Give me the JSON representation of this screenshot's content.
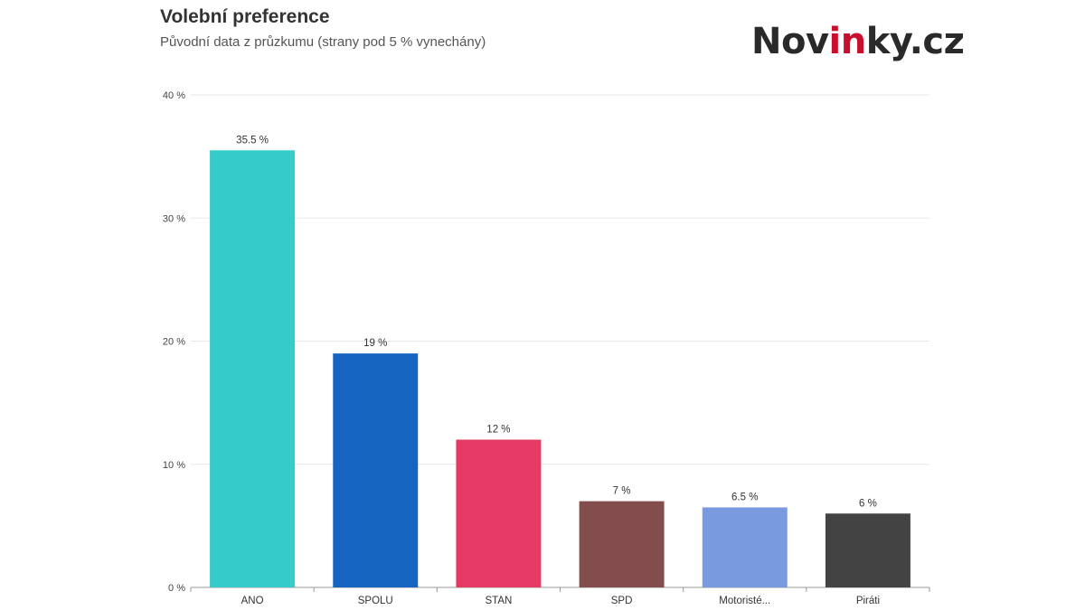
{
  "header": {
    "title": "Volební preference",
    "subtitle": "Původní data z průzkumu (strany pod 5 % vynechány)"
  },
  "logo": {
    "prefix": "Nov",
    "accent": "in",
    "suffix": "ky.cz",
    "accent_color": "#c8102e",
    "text_color": "#2a2a2a"
  },
  "chart_data": {
    "type": "bar",
    "title": "Volební preference",
    "subtitle": "Původní data z průzkumu (strany pod 5 % vynechány)",
    "xlabel": "",
    "ylabel": "",
    "categories": [
      "ANO",
      "SPOLU",
      "STAN",
      "SPD",
      "Motoristé...",
      "Piráti"
    ],
    "values": [
      35.5,
      19,
      12,
      7,
      6.5,
      6
    ],
    "value_labels": [
      "35.5 %",
      "19 %",
      "12 %",
      "7 %",
      "6.5 %",
      "6 %"
    ],
    "colors": [
      "#36cbcb",
      "#1565c0",
      "#e43a64",
      "#844d4d",
      "#7a9ae0",
      "#434343"
    ],
    "ylim": [
      0,
      40
    ],
    "y_ticks": [
      0,
      10,
      20,
      30,
      40
    ],
    "y_tick_labels": [
      "0 %",
      "10 %",
      "20 %",
      "30 %",
      "40 %"
    ],
    "grid": true,
    "legend": "none"
  }
}
